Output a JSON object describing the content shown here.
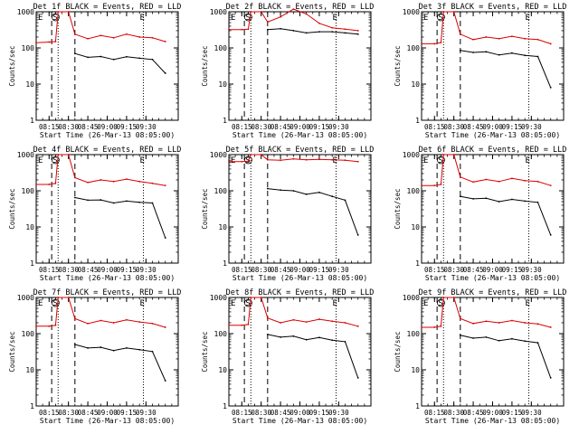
{
  "figure": {
    "ylabel": "Counts/sec",
    "xlabel": "Start Time (26-Mar-13 08:05:00)",
    "colors": {
      "events": "#000000",
      "lld": "#dd0000",
      "axes": "#000000"
    },
    "x_ticks": [
      "08:15",
      "08:30",
      "08:45",
      "09:00",
      "09:15",
      "09:30"
    ],
    "y_ticks": [
      "1",
      "10",
      "100",
      "1000"
    ]
  },
  "chart_data": [
    {
      "type": "line",
      "title": "Det 1f BLACK = Events, RED = LLD",
      "xlabel": "Start Time (26-Mar-13 08:05:00)",
      "ylabel": "Counts/sec",
      "ylim": [
        1,
        1000
      ],
      "y_scale": "log",
      "x": [
        "08:05",
        "08:15",
        "08:20",
        "08:22",
        "08:30",
        "08:35",
        "08:45",
        "08:55",
        "09:05",
        "09:15",
        "09:25",
        "09:35",
        "09:45"
      ],
      "series": [
        {
          "name": "Events",
          "color": "#000000",
          "values": [
            null,
            null,
            null,
            null,
            null,
            70,
            55,
            58,
            48,
            57,
            52,
            48,
            20
          ]
        },
        {
          "name": "LLD",
          "color": "#dd0000",
          "values": [
            140,
            145,
            150,
            1000,
            1000,
            240,
            180,
            220,
            190,
            240,
            200,
            190,
            150
          ]
        }
      ],
      "markers": {
        "S": "08:20",
        "E": "09:28"
      },
      "dashed_lines": [
        "08:17",
        "08:35"
      ],
      "dotted_lines": [
        "08:22",
        "09:28"
      ]
    },
    {
      "type": "line",
      "title": "Det 2f BLACK = Events, RED = LLD",
      "xlabel": "Start Time (26-Mar-13 08:05:00)",
      "ylabel": "Counts/sec",
      "ylim": [
        1,
        1000
      ],
      "y_scale": "log",
      "x": [
        "08:05",
        "08:15",
        "08:20",
        "08:22",
        "08:30",
        "08:35",
        "08:45",
        "08:55",
        "09:05",
        "09:15",
        "09:25",
        "09:35",
        "09:45"
      ],
      "series": [
        {
          "name": "Events",
          "color": "#000000",
          "values": [
            null,
            null,
            null,
            null,
            null,
            320,
            340,
            300,
            260,
            280,
            280,
            260,
            240
          ]
        },
        {
          "name": "LLD",
          "color": "#dd0000",
          "values": [
            320,
            320,
            330,
            1000,
            1000,
            520,
            720,
            1180,
            870,
            480,
            360,
            330,
            300
          ]
        }
      ],
      "markers": {
        "S": "08:20",
        "E": "09:28"
      },
      "dashed_lines": [
        "08:17",
        "08:35"
      ],
      "dotted_lines": [
        "08:22",
        "09:28"
      ]
    },
    {
      "type": "line",
      "title": "Det 3f BLACK = Events, RED = LLD",
      "xlabel": "Start Time (26-Mar-13 08:05:00)",
      "ylabel": "Counts/sec",
      "ylim": [
        1,
        1000
      ],
      "y_scale": "log",
      "x": [
        "08:05",
        "08:15",
        "08:20",
        "08:22",
        "08:30",
        "08:35",
        "08:45",
        "08:55",
        "09:05",
        "09:15",
        "09:25",
        "09:35",
        "09:45"
      ],
      "series": [
        {
          "name": "Events",
          "color": "#000000",
          "values": [
            null,
            null,
            null,
            null,
            null,
            85,
            75,
            78,
            64,
            72,
            62,
            58,
            8
          ]
        },
        {
          "name": "LLD",
          "color": "#dd0000",
          "values": [
            130,
            130,
            140,
            1000,
            1000,
            240,
            170,
            200,
            180,
            210,
            180,
            170,
            130
          ]
        }
      ],
      "markers": {
        "S": "08:20",
        "E": "09:28"
      },
      "dashed_lines": [
        "08:17",
        "08:35"
      ],
      "dotted_lines": [
        "08:22",
        "09:28"
      ]
    },
    {
      "type": "line",
      "title": "Det 4f BLACK = Events, RED = LLD",
      "xlabel": "Start Time (26-Mar-13 08:05:00)",
      "ylabel": "Counts/sec",
      "ylim": [
        1,
        1000
      ],
      "y_scale": "log",
      "x": [
        "08:05",
        "08:15",
        "08:20",
        "08:22",
        "08:30",
        "08:35",
        "08:45",
        "08:55",
        "09:05",
        "09:15",
        "09:25",
        "09:35",
        "09:45"
      ],
      "series": [
        {
          "name": "Events",
          "color": "#000000",
          "values": [
            null,
            null,
            null,
            null,
            null,
            65,
            55,
            56,
            46,
            52,
            48,
            46,
            5
          ]
        },
        {
          "name": "LLD",
          "color": "#dd0000",
          "values": [
            150,
            150,
            160,
            1000,
            1000,
            230,
            170,
            200,
            180,
            210,
            180,
            160,
            140
          ]
        }
      ],
      "markers": {
        "S": "08:20",
        "E": "09:28"
      },
      "dashed_lines": [
        "08:17",
        "08:35"
      ],
      "dotted_lines": [
        "08:22",
        "09:28"
      ]
    },
    {
      "type": "line",
      "title": "Det 5f BLACK = Events, RED = LLD",
      "xlabel": "Start Time (26-Mar-13 08:05:00)",
      "ylabel": "Counts/sec",
      "ylim": [
        1,
        1000
      ],
      "y_scale": "log",
      "x": [
        "08:05",
        "08:15",
        "08:20",
        "08:22",
        "08:30",
        "08:35",
        "08:45",
        "08:55",
        "09:05",
        "09:15",
        "09:25",
        "09:35",
        "09:45"
      ],
      "series": [
        {
          "name": "Events",
          "color": "#000000",
          "values": [
            null,
            null,
            null,
            null,
            null,
            115,
            105,
            100,
            80,
            90,
            70,
            55,
            6
          ]
        },
        {
          "name": "LLD",
          "color": "#dd0000",
          "values": [
            640,
            640,
            660,
            1000,
            1000,
            720,
            700,
            760,
            720,
            740,
            720,
            700,
            640
          ]
        }
      ],
      "markers": {
        "S": "08:20",
        "E": "09:28"
      },
      "dashed_lines": [
        "08:17",
        "08:35"
      ],
      "dotted_lines": [
        "08:22",
        "09:28"
      ]
    },
    {
      "type": "line",
      "title": "Det 6f BLACK = Events, RED = LLD",
      "xlabel": "Start Time (26-Mar-13 08:05:00)",
      "ylabel": "Counts/sec",
      "ylim": [
        1,
        1000
      ],
      "y_scale": "log",
      "x": [
        "08:05",
        "08:15",
        "08:20",
        "08:22",
        "08:30",
        "08:35",
        "08:45",
        "08:55",
        "09:05",
        "09:15",
        "09:25",
        "09:35",
        "09:45"
      ],
      "series": [
        {
          "name": "Events",
          "color": "#000000",
          "values": [
            null,
            null,
            null,
            null,
            null,
            70,
            60,
            62,
            50,
            58,
            52,
            48,
            6
          ]
        },
        {
          "name": "LLD",
          "color": "#dd0000",
          "values": [
            140,
            140,
            150,
            1000,
            1000,
            240,
            175,
            205,
            180,
            220,
            190,
            180,
            140
          ]
        }
      ],
      "markers": {
        "S": "08:20",
        "E": "09:28"
      },
      "dashed_lines": [
        "08:17",
        "08:35"
      ],
      "dotted_lines": [
        "08:22",
        "09:28"
      ]
    },
    {
      "type": "line",
      "title": "Det 7f BLACK = Events, RED = LLD",
      "xlabel": "Start Time (26-Mar-13 08:05:00)",
      "ylabel": "Counts/sec",
      "ylim": [
        1,
        1000
      ],
      "y_scale": "log",
      "x": [
        "08:05",
        "08:15",
        "08:20",
        "08:22",
        "08:30",
        "08:35",
        "08:45",
        "08:55",
        "09:05",
        "09:15",
        "09:25",
        "09:35",
        "09:45"
      ],
      "series": [
        {
          "name": "Events",
          "color": "#000000",
          "values": [
            null,
            null,
            null,
            null,
            null,
            50,
            40,
            42,
            34,
            40,
            36,
            32,
            5
          ]
        },
        {
          "name": "LLD",
          "color": "#dd0000",
          "values": [
            160,
            160,
            170,
            1000,
            1000,
            260,
            190,
            230,
            200,
            240,
            210,
            190,
            150
          ]
        }
      ],
      "markers": {
        "S": "08:20",
        "E": "09:28"
      },
      "dashed_lines": [
        "08:17",
        "08:35"
      ],
      "dotted_lines": [
        "08:22",
        "09:28"
      ]
    },
    {
      "type": "line",
      "title": "Det 8f BLACK = Events, RED = LLD",
      "xlabel": "Start Time (26-Mar-13 08:05:00)",
      "ylabel": "Counts/sec",
      "ylim": [
        1,
        1000
      ],
      "y_scale": "log",
      "x": [
        "08:05",
        "08:15",
        "08:20",
        "08:22",
        "08:30",
        "08:35",
        "08:45",
        "08:55",
        "09:05",
        "09:15",
        "09:25",
        "09:35",
        "09:45"
      ],
      "series": [
        {
          "name": "Events",
          "color": "#000000",
          "values": [
            null,
            null,
            null,
            null,
            null,
            95,
            80,
            85,
            68,
            78,
            66,
            60,
            6
          ]
        },
        {
          "name": "LLD",
          "color": "#dd0000",
          "values": [
            170,
            170,
            180,
            1000,
            1000,
            270,
            200,
            240,
            210,
            250,
            220,
            200,
            160
          ]
        }
      ],
      "markers": {
        "S": "08:20",
        "E": "09:28"
      },
      "dashed_lines": [
        "08:17",
        "08:35"
      ],
      "dotted_lines": [
        "08:22",
        "09:28"
      ]
    },
    {
      "type": "line",
      "title": "Det 9f BLACK = Events, RED = LLD",
      "xlabel": "Start Time (26-Mar-13 08:05:00)",
      "ylabel": "Counts/sec",
      "ylim": [
        1,
        1000
      ],
      "y_scale": "log",
      "x": [
        "08:05",
        "08:15",
        "08:20",
        "08:22",
        "08:30",
        "08:35",
        "08:45",
        "08:55",
        "09:05",
        "09:15",
        "09:25",
        "09:35",
        "09:45"
      ],
      "series": [
        {
          "name": "Events",
          "color": "#000000",
          "values": [
            null,
            null,
            null,
            null,
            null,
            90,
            75,
            80,
            64,
            72,
            62,
            56,
            6
          ]
        },
        {
          "name": "LLD",
          "color": "#dd0000",
          "values": [
            150,
            150,
            160,
            1000,
            1000,
            260,
            190,
            220,
            200,
            230,
            200,
            185,
            150
          ]
        }
      ],
      "markers": {
        "S": "08:20",
        "E": "09:28"
      },
      "dashed_lines": [
        "08:17",
        "08:35"
      ],
      "dotted_lines": [
        "08:22",
        "09:28"
      ]
    }
  ]
}
